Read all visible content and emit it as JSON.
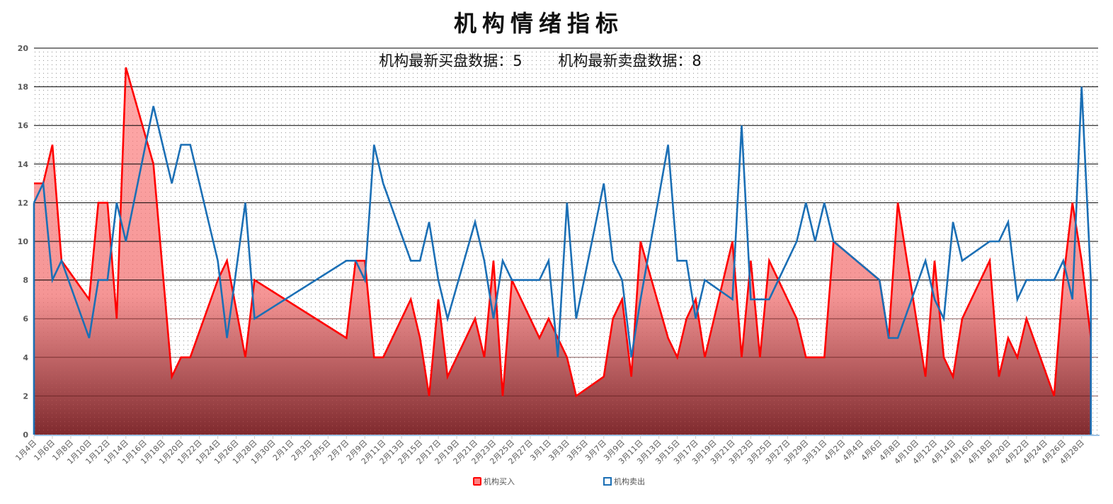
{
  "title": "机构情绪指标",
  "subtitle": {
    "buy_label": "机构最新买盘数据：",
    "buy_value": "5",
    "sell_label": "机构最新卖盘数据：",
    "sell_value": "8"
  },
  "legend": {
    "buy": "机构买入",
    "sell": "机构卖出"
  },
  "colors": {
    "buy_line": "#ff0000",
    "buy_fill_top": "#ffaaaa",
    "buy_fill_bottom": "#7f2a2e",
    "sell_line": "#1b6fb5",
    "grid": "#000000",
    "axis_text": "#595959"
  },
  "chart_data": {
    "type": "area",
    "title": "机构情绪指标",
    "subtitle": "机构最新买盘数据：5    机构最新卖盘数据：8",
    "xlabel": "",
    "ylabel": "",
    "ylim": [
      0,
      20
    ],
    "yticks": [
      0,
      2,
      4,
      6,
      8,
      10,
      12,
      14,
      16,
      18,
      20
    ],
    "grid": true,
    "legend_position": "bottom",
    "x_axis": {
      "type": "date",
      "start": "1月4日",
      "end": "4月29日",
      "tick_step_days": 2
    },
    "x_tick_labels": [
      "1月4日",
      "1月6日",
      "1月8日",
      "1月10日",
      "1月12日",
      "1月14日",
      "1月16日",
      "1月18日",
      "1月20日",
      "1月22日",
      "1月24日",
      "1月26日",
      "1月28日",
      "1月30日",
      "2月1日",
      "2月3日",
      "2月5日",
      "2月7日",
      "2月9日",
      "2月11日",
      "2月13日",
      "2月15日",
      "2月17日",
      "2月19日",
      "2月21日",
      "2月23日",
      "2月25日",
      "2月27日",
      "3月1日",
      "3月3日",
      "3月5日",
      "3月7日",
      "3月9日",
      "3月11日",
      "3月13日",
      "3月15日",
      "3月17日",
      "3月19日",
      "3月21日",
      "3月23日",
      "3月25日",
      "3月27日",
      "3月29日",
      "3月31日",
      "4月2日",
      "4月4日",
      "4月6日",
      "4月8日",
      "4月10日",
      "4月12日",
      "4月14日",
      "4月16日",
      "4月18日",
      "4月20日",
      "4月22日",
      "4月24日",
      "4月26日",
      "4月28日"
    ],
    "categories": [
      "1月4日",
      "1月5日",
      "1月6日",
      "1月7日",
      "1月10日",
      "1月11日",
      "1月12日",
      "1月13日",
      "1月14日",
      "1月17日",
      "1月19日",
      "1月20日",
      "1月21日",
      "1月24日",
      "1月25日",
      "1月27日",
      "1月28日",
      "2月7日",
      "2月8日",
      "2月9日",
      "2月10日",
      "2月11日",
      "2月14日",
      "2月15日",
      "2月16日",
      "2月17日",
      "2月18日",
      "2月21日",
      "2月22日",
      "2月23日",
      "2月24日",
      "2月25日",
      "2月28日",
      "3月1日",
      "3月2日",
      "3月3日",
      "3月4日",
      "3月7日",
      "3月8日",
      "3月9日",
      "3月10日",
      "3月11日",
      "3月14日",
      "3月15日",
      "3月16日",
      "3月17日",
      "3月18日",
      "3月21日",
      "3月22日",
      "3月23日",
      "3月24日",
      "3月25日",
      "3月28日",
      "3月29日",
      "3月30日",
      "3月31日",
      "4月1日",
      "4月6日",
      "4月7日",
      "4月8日",
      "4月11日",
      "4月12日",
      "4月13日",
      "4月14日",
      "4月15日",
      "4月18日",
      "4月19日",
      "4月20日",
      "4月21日",
      "4月22日",
      "4月25日",
      "4月26日",
      "4月27日",
      "4月28日",
      "4月29日"
    ],
    "day_offsets": [
      0,
      1,
      2,
      3,
      6,
      7,
      8,
      9,
      10,
      13,
      15,
      16,
      17,
      20,
      21,
      23,
      24,
      34,
      35,
      36,
      37,
      38,
      41,
      42,
      43,
      44,
      45,
      48,
      49,
      50,
      51,
      52,
      55,
      56,
      57,
      58,
      59,
      62,
      63,
      64,
      65,
      66,
      69,
      70,
      71,
      72,
      73,
      76,
      77,
      78,
      79,
      80,
      83,
      84,
      85,
      86,
      87,
      92,
      93,
      94,
      97,
      98,
      99,
      100,
      101,
      104,
      105,
      106,
      107,
      108,
      111,
      112,
      113,
      114,
      115
    ],
    "series": [
      {
        "name": "机构买入",
        "style": "area",
        "values": [
          13,
          13,
          15,
          9,
          7,
          12,
          12,
          6,
          19,
          14,
          3,
          4,
          4,
          8,
          9,
          4,
          8,
          5,
          9,
          9,
          4,
          4,
          7,
          5,
          2,
          7,
          3,
          6,
          4,
          9,
          2,
          8,
          5,
          6,
          5,
          4,
          2,
          3,
          6,
          7,
          3,
          10,
          5,
          4,
          6,
          7,
          4,
          10,
          4,
          9,
          4,
          9,
          6,
          4,
          4,
          4,
          10,
          8,
          5,
          12,
          3,
          9,
          4,
          3,
          6,
          9,
          3,
          5,
          4,
          6,
          2,
          8,
          12,
          9,
          5
        ]
      },
      {
        "name": "机构卖出",
        "style": "line",
        "values": [
          12,
          13,
          8,
          9,
          5,
          8,
          8,
          12,
          10,
          17,
          13,
          15,
          15,
          9,
          5,
          12,
          6,
          9,
          9,
          8,
          15,
          13,
          9,
          9,
          11,
          8,
          6,
          11,
          9,
          6,
          9,
          8,
          8,
          9,
          4,
          12,
          6,
          13,
          9,
          8,
          4,
          7,
          15,
          9,
          9,
          6,
          8,
          7,
          16,
          7,
          7,
          7,
          10,
          12,
          10,
          12,
          10,
          8,
          5,
          5,
          9,
          7,
          6,
          11,
          9,
          10,
          10,
          11,
          7,
          8,
          8,
          9,
          7,
          18,
          8
        ]
      }
    ]
  }
}
